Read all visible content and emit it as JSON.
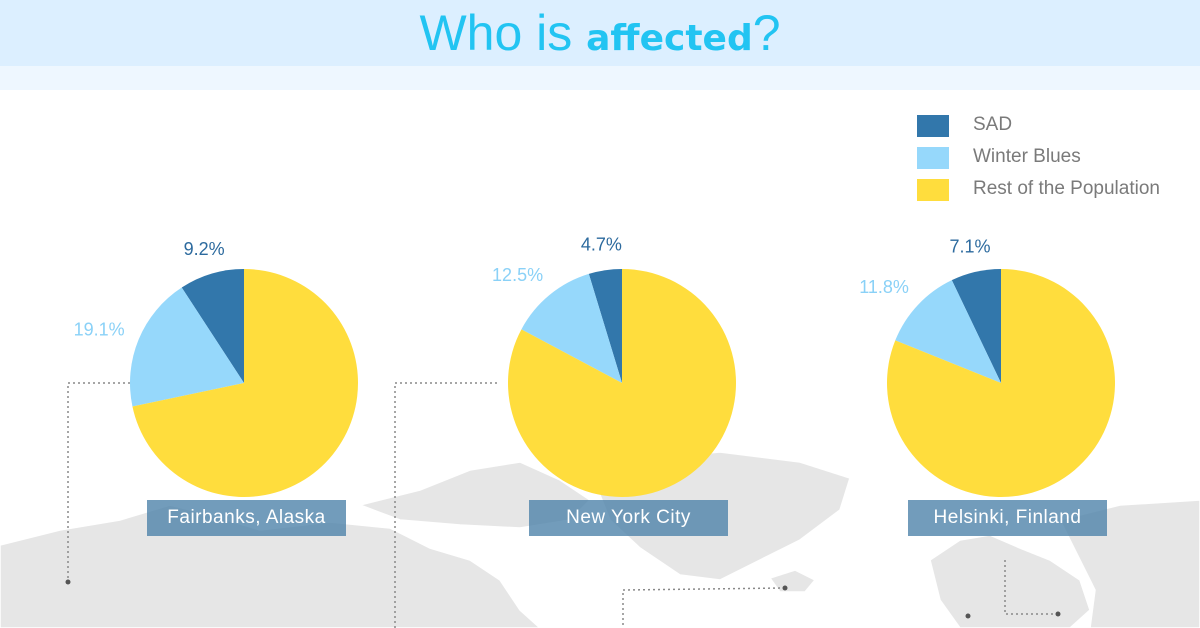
{
  "title": {
    "prefix": "Who is ",
    "bold": "affected",
    "suffix": "?"
  },
  "legend": [
    {
      "label": "SAD",
      "color": "#3277ab"
    },
    {
      "label": "Winter Blues",
      "color": "#96d8fb"
    },
    {
      "label": "Rest of the Population",
      "color": "#ffdd3d"
    }
  ],
  "chart_data": [
    {
      "type": "pie",
      "title": "Fairbanks, Alaska",
      "slices": [
        {
          "label": "SAD",
          "value": 9.2,
          "display": "9.2%",
          "color": "#3277ab",
          "label_color": "#2c6a9e"
        },
        {
          "label": "Winter Blues",
          "value": 19.1,
          "display": "19.1%",
          "color": "#96d8fb",
          "label_color": "#8ad1f7"
        },
        {
          "label": "Rest of the Population",
          "value": 71.7,
          "display": "",
          "color": "#ffdd3d",
          "label_color": "#7a7a7a"
        }
      ]
    },
    {
      "type": "pie",
      "title": "New York City",
      "slices": [
        {
          "label": "SAD",
          "value": 4.7,
          "display": "4.7%",
          "color": "#3277ab",
          "label_color": "#2c6a9e"
        },
        {
          "label": "Winter Blues",
          "value": 12.5,
          "display": "12.5%",
          "color": "#96d8fb",
          "label_color": "#8ad1f7"
        },
        {
          "label": "Rest of the Population",
          "value": 82.8,
          "display": "",
          "color": "#ffdd3d",
          "label_color": "#7a7a7a"
        }
      ]
    },
    {
      "type": "pie",
      "title": "Helsinki, Finland",
      "slices": [
        {
          "label": "SAD",
          "value": 7.1,
          "display": "7.1%",
          "color": "#3277ab",
          "label_color": "#2c6a9e"
        },
        {
          "label": "Winter Blues",
          "value": 11.8,
          "display": "11.8%",
          "color": "#96d8fb",
          "label_color": "#8ad1f7"
        },
        {
          "label": "Rest of the Population",
          "value": 81.1,
          "display": "",
          "color": "#ffdd3d",
          "label_color": "#7a7a7a"
        }
      ]
    }
  ]
}
